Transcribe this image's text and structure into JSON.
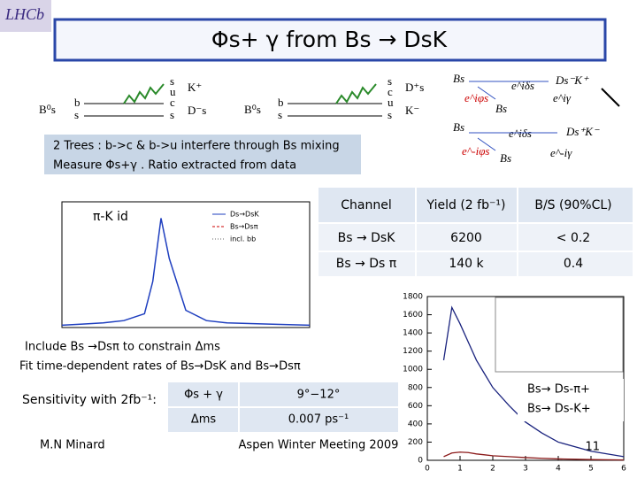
{
  "header": {
    "logo": "LHCb",
    "title": "Φs+ γ from Bs → DsK"
  },
  "diagrams": {
    "left": [
      "B⁰s",
      "b",
      "s",
      "s",
      "u",
      "c",
      "s",
      "K⁺",
      "D⁻s"
    ],
    "right": [
      "B⁰s",
      "b",
      "s",
      "s",
      "c",
      "u",
      "s",
      "D⁺s",
      "K⁻"
    ],
    "amplitudes": [
      "Bs",
      "e^iφs",
      "Ds⁻K⁺",
      "e^iδs",
      "e^iγ",
      "Bs",
      "Bs",
      "e^iδs",
      "Ds⁺K⁻",
      "e^-iφs",
      "Bs",
      "e^-iγ"
    ]
  },
  "info": [
    "2 Trees : b->c & b->u interfere through Bs mixing",
    "Measure Φs+γ . Ratio extracted from data"
  ],
  "yield_table": {
    "header": [
      "Channel",
      "Yield (2 fb⁻¹)",
      "B/S (90%CL)"
    ],
    "rows": [
      [
        "Bs → DsK",
        "6200",
        "< 0.2"
      ],
      [
        "Bs → Ds π",
        "140 k",
        "0.4"
      ]
    ]
  },
  "mass_plot": {
    "label": "π-K id",
    "legend": [
      "Ds→DsK",
      "Bs→Dsπ",
      "incl. bb"
    ],
    "color": "#1f3fbf",
    "x": [
      5250,
      5275,
      5300,
      5325,
      5350,
      5360,
      5370,
      5380,
      5400,
      5425,
      5450,
      5500,
      5550
    ],
    "values": [
      2,
      3,
      4,
      6,
      12,
      40,
      95,
      60,
      15,
      6,
      4,
      3,
      2
    ],
    "xlim": [
      5250,
      5550
    ],
    "ylim": [
      0,
      100
    ]
  },
  "notes": [
    "Include Bs →Dsπ to constrain Δms",
    "Fit time-dependent rates of Bs→DsK and Bs→Dsπ"
  ],
  "sensitivity": {
    "label": "Sensitivity with 2fb⁻¹:",
    "rows": [
      [
        "Φs + γ",
        "9°−12°"
      ],
      [
        "Δms",
        "0.007 ps⁻¹"
      ]
    ]
  },
  "time_plot": {
    "type": "line",
    "legend": [
      "Bs→ Ds-π+",
      "Bs→ Ds-K+"
    ],
    "x": [
      0.5,
      0.75,
      1,
      1.25,
      1.5,
      1.75,
      2,
      2.5,
      3,
      3.5,
      4,
      5,
      6
    ],
    "series": [
      {
        "name": "Bs→ Ds-π+",
        "color": "#1a237e",
        "values": [
          1100,
          1680,
          1500,
          1300,
          1100,
          950,
          800,
          600,
          420,
          300,
          200,
          100,
          40
        ]
      },
      {
        "name": "Bs→ Ds-K+",
        "color": "#8b1a1a",
        "values": [
          40,
          80,
          90,
          85,
          70,
          60,
          50,
          40,
          30,
          22,
          15,
          8,
          4
        ]
      }
    ],
    "xlim": [
      0,
      6
    ],
    "ylim": [
      0,
      1800
    ],
    "xticks": [
      0,
      1,
      2,
      3,
      4,
      5,
      6
    ],
    "yticks": [
      0,
      200,
      400,
      600,
      800,
      1000,
      1200,
      1400,
      1600,
      1800
    ]
  },
  "footer": {
    "author": "M.N Minard",
    "event": "Aspen Winter Meeting 2009",
    "page": "11"
  }
}
